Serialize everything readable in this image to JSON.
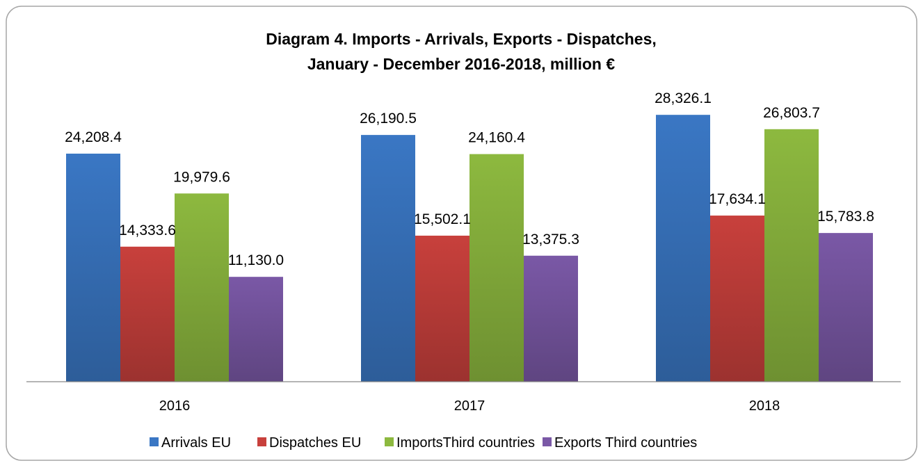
{
  "chart_data": {
    "type": "bar",
    "title_lines": [
      "Diagram 4. Imports - Arrivals, Exports - Dispatches,",
      "January - December 2016-2018,  million €"
    ],
    "xlabel": "",
    "ylabel": "",
    "categories": [
      "2016",
      "2017",
      "2018"
    ],
    "ylim": [
      0,
      30000
    ],
    "grid": false,
    "legend_position": "bottom",
    "series": [
      {
        "name": "Arrivals EU",
        "color": "#3A77C4",
        "values": [
          24208.4,
          26190.5,
          28326.1
        ],
        "labels": [
          "24,208.4",
          "26,190.5",
          "28,326.1"
        ]
      },
      {
        "name": "Dispatches EU",
        "color": "#C8403C",
        "values": [
          14333.6,
          15502.1,
          17634.1
        ],
        "labels": [
          "14,333.6",
          "15,502.1",
          "17,634.1"
        ]
      },
      {
        "name": "ImportsThird countries",
        "color": "#8DB93F",
        "values": [
          19979.6,
          24160.4,
          26803.7
        ],
        "labels": [
          "19,979.6",
          "24,160.4",
          "26,803.7"
        ]
      },
      {
        "name": "Exports Third countries",
        "color": "#7A58A6",
        "values": [
          11130.0,
          13375.3,
          15783.8
        ],
        "labels": [
          "11,130.0",
          "13,375.3",
          "15,783.8"
        ]
      }
    ]
  }
}
